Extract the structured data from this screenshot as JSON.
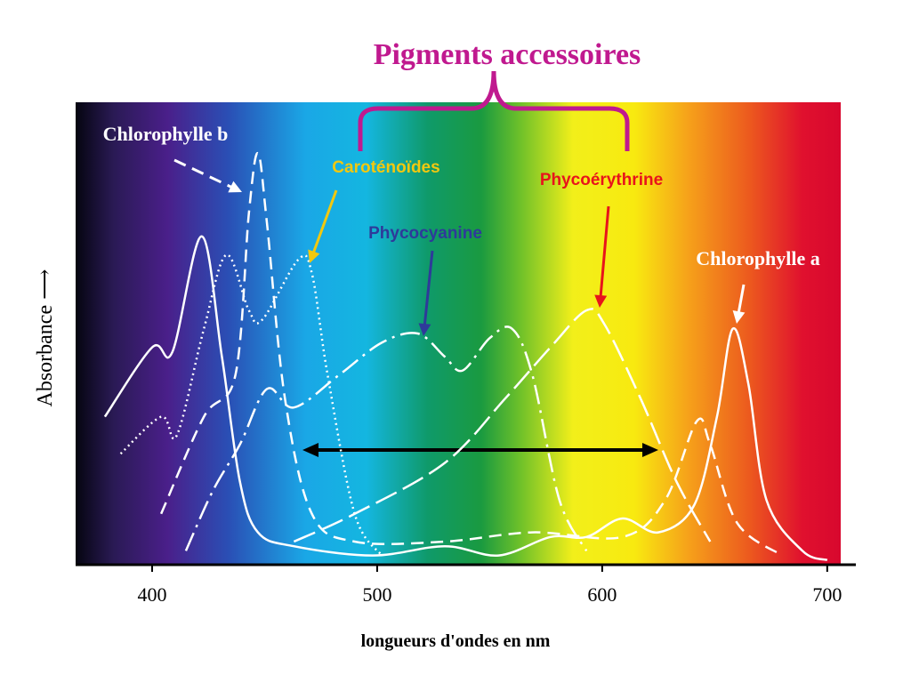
{
  "chart_data": {
    "type": "line",
    "title": "Pigments accessoires",
    "x_label": "longueurs d'ondes en nm",
    "y_label": "Absorbance ⟶",
    "xlim": [
      366,
      706
    ],
    "ylim": [
      0,
      1
    ],
    "xticks": [
      400,
      500,
      600,
      700
    ],
    "series": [
      {
        "name": "Chlorophylle a",
        "color": "#ffffff",
        "label_color": "#ffffff",
        "style": "solid",
        "x": [
          379,
          400,
          409,
          422,
          431,
          439,
          447,
          463,
          498,
          530,
          554,
          577,
          593,
          609,
          625,
          641,
          651,
          658,
          665,
          673,
          689,
          700
        ],
        "values": [
          0.32,
          0.47,
          0.46,
          0.71,
          0.45,
          0.18,
          0.07,
          0.04,
          0.02,
          0.04,
          0.02,
          0.06,
          0.06,
          0.1,
          0.07,
          0.13,
          0.32,
          0.51,
          0.39,
          0.14,
          0.03,
          0.01
        ]
      },
      {
        "name": "Chlorophylle b",
        "color": "#ffffff",
        "label_color": "#ffffff",
        "style": "dashed",
        "x": [
          404,
          423,
          437,
          443,
          447,
          451,
          459,
          471,
          490,
          530,
          569,
          609,
          628,
          642,
          648,
          660,
          680
        ],
        "values": [
          0.11,
          0.32,
          0.41,
          0.76,
          0.89,
          0.74,
          0.36,
          0.11,
          0.05,
          0.05,
          0.07,
          0.06,
          0.14,
          0.31,
          0.26,
          0.09,
          0.02
        ]
      },
      {
        "name": "Caroténoïdes",
        "color": "#ffffff",
        "label_color": "#f2c80f",
        "style": "dotted",
        "x": [
          386,
          404,
          411,
          423,
          433,
          443,
          449,
          465,
          471,
          478,
          490,
          502
        ],
        "values": [
          0.24,
          0.32,
          0.28,
          0.51,
          0.67,
          0.55,
          0.53,
          0.66,
          0.63,
          0.41,
          0.11,
          0.02
        ]
      },
      {
        "name": "Phycocyanine",
        "color": "#ffffff",
        "label_color": "#2e3a9a",
        "style": "dashdot",
        "x": [
          415,
          427,
          439,
          451,
          463,
          483,
          502,
          518,
          530,
          538,
          550,
          560,
          569,
          581,
          593
        ],
        "values": [
          0.03,
          0.16,
          0.26,
          0.38,
          0.34,
          0.41,
          0.48,
          0.5,
          0.45,
          0.42,
          0.49,
          0.51,
          0.41,
          0.14,
          0.03
        ]
      },
      {
        "name": "Phycoérythrine",
        "color": "#ffffff",
        "label_color": "#e8141b",
        "style": "longdash",
        "x": [
          463,
          490,
          530,
          557,
          577,
          593,
          601,
          617,
          633,
          648
        ],
        "values": [
          0.05,
          0.11,
          0.22,
          0.36,
          0.47,
          0.55,
          0.52,
          0.36,
          0.18,
          0.05
        ]
      }
    ]
  }
}
